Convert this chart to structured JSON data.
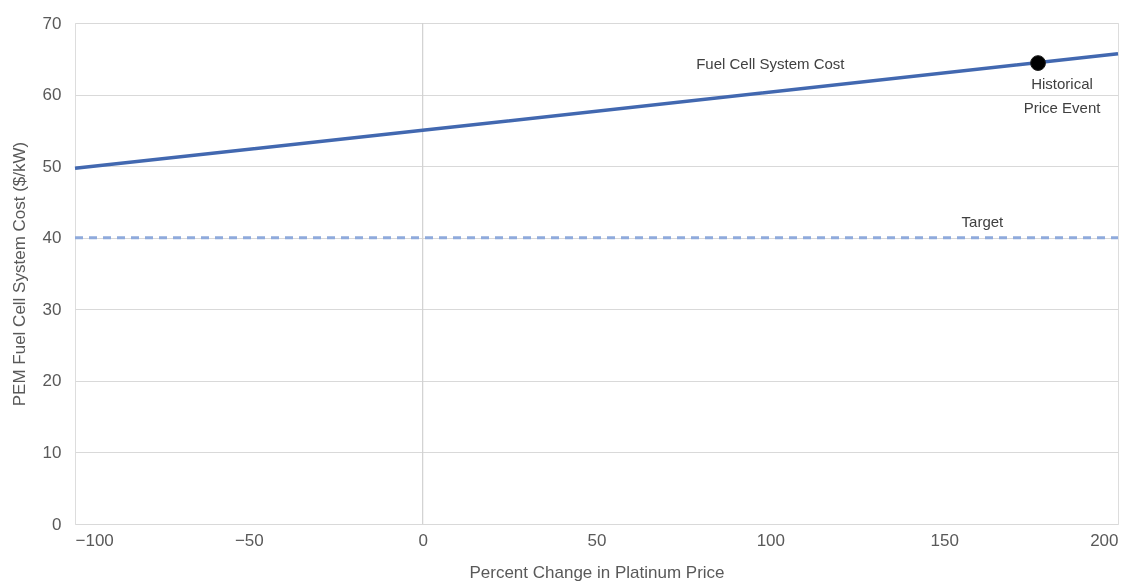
{
  "chart_data": {
    "type": "line",
    "xlabel": "Percent Change in Platinum Price",
    "ylabel": "PEM Fuel Cell System Cost ($/kW)",
    "series": [
      {
        "name": "Fuel Cell System Cost",
        "color": "#4268b0",
        "x": [
          -100,
          0,
          200
        ],
        "values": [
          49.7,
          55,
          65.7
        ]
      },
      {
        "name": "Historical Price Event",
        "type": "scatter",
        "marker": "circle",
        "color": "#000000",
        "x": [
          177
        ],
        "values": [
          64.4
        ]
      }
    ],
    "xlim": [
      -100,
      200
    ],
    "xticks": [
      -100,
      -50,
      0,
      50,
      100,
      150,
      200
    ],
    "ylim": [
      0,
      70
    ],
    "yticks": [
      0,
      10,
      20,
      30,
      40,
      50,
      60,
      70
    ],
    "ref_lines": [
      {
        "axis": "y",
        "value": 40,
        "label": "Target",
        "color": "#8faadc",
        "line_style": "dashed"
      },
      {
        "axis": "x",
        "value": 0,
        "color": "#d0d0d0",
        "line_style": "solid"
      }
    ],
    "grid": "y",
    "line_style": "solid"
  }
}
